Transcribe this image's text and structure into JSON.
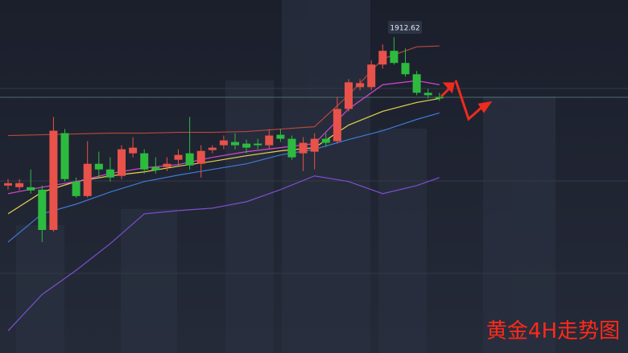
{
  "chart_data": {
    "type": "candlestick",
    "title": "黄金4H走势图",
    "ylim": [
      1850,
      1920
    ],
    "up_color": "#e8524a",
    "down_color": "#2dbb3f",
    "candles": [
      {
        "open": 1883.2,
        "high": 1884.48,
        "low": 1882.4,
        "close": 1883.68
      },
      {
        "open": 1882.88,
        "high": 1884.48,
        "low": 1882.24,
        "close": 1883.68
      },
      {
        "open": 1882.88,
        "high": 1886.4,
        "low": 1881.6,
        "close": 1882.24
      },
      {
        "open": 1882.4,
        "high": 1883.2,
        "low": 1872,
        "close": 1874.4
      },
      {
        "open": 1874.4,
        "high": 1896.8,
        "low": 1874.08,
        "close": 1894.08
      },
      {
        "open": 1893.6,
        "high": 1894.4,
        "low": 1884,
        "close": 1884.48
      },
      {
        "open": 1884,
        "high": 1884.8,
        "low": 1880.8,
        "close": 1881.12
      },
      {
        "open": 1881.12,
        "high": 1892,
        "low": 1880.8,
        "close": 1887.52
      },
      {
        "open": 1887.52,
        "high": 1889.92,
        "low": 1884.8,
        "close": 1886.4
      },
      {
        "open": 1886.4,
        "high": 1888.8,
        "low": 1884,
        "close": 1884.8
      },
      {
        "open": 1885.12,
        "high": 1891.2,
        "low": 1884.48,
        "close": 1890.4
      },
      {
        "open": 1889.6,
        "high": 1892.8,
        "low": 1888.8,
        "close": 1890.72
      },
      {
        "open": 1889.6,
        "high": 1890.4,
        "low": 1885.6,
        "close": 1886.4
      },
      {
        "open": 1886.88,
        "high": 1888.8,
        "low": 1885.6,
        "close": 1886.24
      },
      {
        "open": 1886.88,
        "high": 1888.8,
        "low": 1886.08,
        "close": 1887.52
      },
      {
        "open": 1888.32,
        "high": 1890.4,
        "low": 1887.2,
        "close": 1889.28
      },
      {
        "open": 1889.6,
        "high": 1896.8,
        "low": 1886.4,
        "close": 1887.2
      },
      {
        "open": 1887.52,
        "high": 1891.2,
        "low": 1884.8,
        "close": 1890.08
      },
      {
        "open": 1890.24,
        "high": 1891.2,
        "low": 1889.6,
        "close": 1890.72
      },
      {
        "open": 1891.2,
        "high": 1893.12,
        "low": 1890.4,
        "close": 1892.16
      },
      {
        "open": 1891.84,
        "high": 1893.6,
        "low": 1890.4,
        "close": 1891.2
      },
      {
        "open": 1891.52,
        "high": 1892.32,
        "low": 1889.6,
        "close": 1890.72
      },
      {
        "open": 1891.52,
        "high": 1892.48,
        "low": 1890.4,
        "close": 1891.2
      },
      {
        "open": 1891.2,
        "high": 1894.4,
        "low": 1890.4,
        "close": 1893.12
      },
      {
        "open": 1893.28,
        "high": 1894.4,
        "low": 1891.84,
        "close": 1892.48
      },
      {
        "open": 1892.48,
        "high": 1893.12,
        "low": 1888.32,
        "close": 1888.8
      },
      {
        "open": 1889.6,
        "high": 1892.8,
        "low": 1886.08,
        "close": 1891.68
      },
      {
        "open": 1889.92,
        "high": 1893.6,
        "low": 1886.4,
        "close": 1892.48
      },
      {
        "open": 1892.48,
        "high": 1893.6,
        "low": 1890.88,
        "close": 1891.68
      },
      {
        "open": 1892,
        "high": 1900.8,
        "low": 1891.52,
        "close": 1898.4
      },
      {
        "open": 1898.4,
        "high": 1904.32,
        "low": 1897.92,
        "close": 1903.68
      },
      {
        "open": 1902.72,
        "high": 1904.32,
        "low": 1902.08,
        "close": 1903.52
      },
      {
        "open": 1902.72,
        "high": 1908,
        "low": 1902.08,
        "close": 1907.2
      },
      {
        "open": 1907.2,
        "high": 1911.2,
        "low": 1906.4,
        "close": 1909.92
      },
      {
        "open": 1909.92,
        "high": 1912.62,
        "low": 1907.2,
        "close": 1907.52
      },
      {
        "open": 1907.52,
        "high": 1910.4,
        "low": 1904.8,
        "close": 1905.28
      },
      {
        "open": 1905.28,
        "high": 1905.92,
        "low": 1901.12,
        "close": 1901.6
      },
      {
        "open": 1901.6,
        "high": 1902.4,
        "low": 1900.48,
        "close": 1901.12
      },
      {
        "open": 1900.8,
        "high": 1901.6,
        "low": 1900,
        "close": 1900.48
      }
    ],
    "series": [
      {
        "color": "#b8473f",
        "x": [
          0,
          3,
          6,
          9,
          12,
          15,
          18,
          21,
          24,
          27,
          30,
          33,
          36,
          38
        ],
        "values": [
          1893.12,
          1893.28,
          1893.44,
          1893.6,
          1893.6,
          1893.76,
          1893.76,
          1893.92,
          1894.4,
          1894.88,
          1901.12,
          1908.32,
          1910.72,
          1910.88
        ]
      },
      {
        "color": "#7d4fd0",
        "x": [
          0,
          3,
          6,
          9,
          12,
          15,
          18,
          21,
          24,
          27,
          30,
          33,
          36,
          38
        ],
        "values": [
          1854.4,
          1861.6,
          1866.4,
          1871.68,
          1877.6,
          1878.24,
          1878.72,
          1880,
          1882.4,
          1885.12,
          1884,
          1881.6,
          1883.2,
          1884.8
        ]
      },
      {
        "color": "#3e7bd6",
        "x": [
          0,
          3,
          6,
          9,
          12,
          15,
          18,
          21,
          24,
          27,
          30,
          33,
          36,
          38
        ],
        "values": [
          1872,
          1877.6,
          1879.52,
          1881.92,
          1884,
          1885.28,
          1886.4,
          1887.52,
          1889.28,
          1890.4,
          1892.32,
          1894.08,
          1896.32,
          1897.6
        ]
      },
      {
        "color": "#e3d44a",
        "x": [
          0,
          3,
          6,
          9,
          12,
          15,
          18,
          21,
          24,
          27,
          30,
          33,
          36,
          38
        ],
        "values": [
          1877.6,
          1881.92,
          1884,
          1885.12,
          1885.92,
          1887.04,
          1888,
          1889.12,
          1890.08,
          1890.72,
          1895.2,
          1897.92,
          1899.68,
          1900.48
        ]
      },
      {
        "color": "#d846d6",
        "x": [
          0,
          3,
          6,
          9,
          12,
          15,
          18,
          21,
          24,
          27,
          30,
          33,
          36,
          38
        ],
        "values": [
          1881.6,
          1882.88,
          1884,
          1885.6,
          1886.72,
          1887.36,
          1888.8,
          1889.92,
          1890.72,
          1891.52,
          1898.4,
          1903.2,
          1904,
          1903.2
        ]
      }
    ]
  }
}
